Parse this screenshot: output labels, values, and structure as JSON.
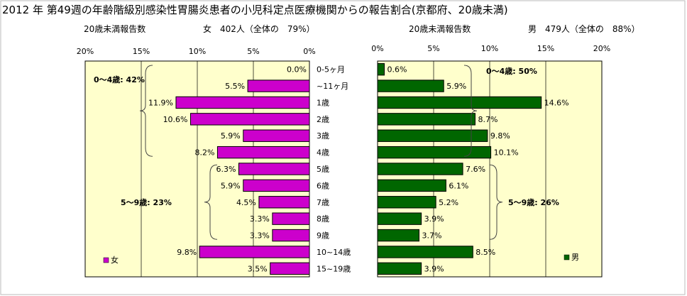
{
  "title": "2012 年 第49週の年齢階級別感染性胃腸炎患者の小児科定点医療機関からの報告割合(京都府、20歳未満)",
  "chart_data": {
    "type": "bar",
    "categories": [
      "0-5ヶ月",
      "~11ヶ月",
      "1歳",
      "2歳",
      "3歳",
      "4歳",
      "5歳",
      "6歳",
      "7歳",
      "8歳",
      "9歳",
      "10~14歳",
      "15~19歳"
    ],
    "left": {
      "subtitle_label": "20歳未満報告数",
      "subtitle_count": "女　402人（全体の　79%）",
      "legend": "女",
      "color": "#cc00cc",
      "xlim": [
        0,
        20
      ],
      "ticks": [
        "20%",
        "15%",
        "10%",
        "5%",
        "0%"
      ],
      "values": [
        0.0,
        5.5,
        11.9,
        10.6,
        5.9,
        8.2,
        6.3,
        5.9,
        4.5,
        3.3,
        3.3,
        9.8,
        3.5
      ],
      "labels": [
        "0.0%",
        "5.5%",
        "11.9%",
        "10.6%",
        "5.9%",
        "8.2%",
        "6.3%",
        "5.9%",
        "4.5%",
        "3.3%",
        "3.3%",
        "9.8%",
        "3.5%"
      ],
      "groups": [
        {
          "label": "0～4歳: 42%",
          "from": 0,
          "to": 5
        },
        {
          "label": "5～9歳: 23%",
          "from": 6,
          "to": 10
        }
      ]
    },
    "right": {
      "subtitle_label": "20歳未満報告数",
      "subtitle_count": "男　479人（全体の　88%）",
      "legend": "男",
      "color": "#006600",
      "xlim": [
        0,
        20
      ],
      "ticks": [
        "0%",
        "5%",
        "10%",
        "15%",
        "20%"
      ],
      "values": [
        0.6,
        5.9,
        14.6,
        8.7,
        9.8,
        10.1,
        7.6,
        6.1,
        5.2,
        3.9,
        3.7,
        8.5,
        3.9
      ],
      "labels": [
        "0.6%",
        "5.9%",
        "14.6%",
        "8.7%",
        "9.8%",
        "10.1%",
        "7.6%",
        "6.1%",
        "5.2%",
        "3.9%",
        "3.7%",
        "8.5%",
        "3.9%"
      ],
      "groups": [
        {
          "label": "0～4歳: 50%",
          "from": 0,
          "to": 5
        },
        {
          "label": "5～9歳: 26%",
          "from": 6,
          "to": 10
        }
      ]
    }
  }
}
